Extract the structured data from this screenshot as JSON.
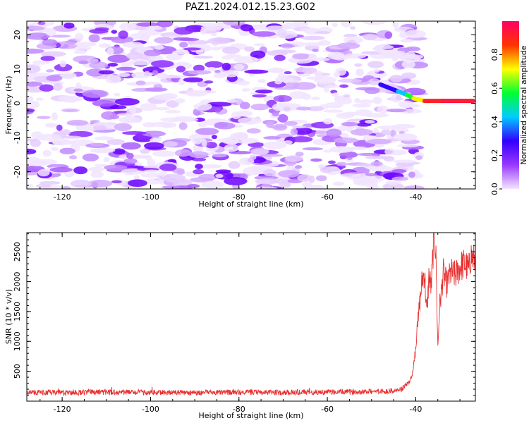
{
  "title": "PAZ1.2024.012.15.23.G02",
  "chart_data": [
    {
      "type": "heatmap",
      "xlabel": "Height of straight line (km)",
      "ylabel": "Frequency (Hz)",
      "xlim": [
        -128,
        -26.5
      ],
      "ylim": [
        -25,
        24
      ],
      "x_ticks": [
        "-120",
        "-100",
        "-80",
        "-60",
        "-40"
      ],
      "y_ticks": [
        "20",
        "10",
        "0",
        "-10",
        "-20"
      ],
      "colorbar": {
        "label": "Normalized spectral amplitude",
        "range": [
          0,
          1
        ],
        "ticks": [
          "0.0",
          "0.2",
          "0.4",
          "0.6",
          "0.8"
        ],
        "colors": [
          "#f3e6ff",
          "#9a38ff",
          "#3300ff",
          "#00ccff",
          "#00ff30",
          "#ffff00",
          "#ff3300",
          "#ff0066"
        ]
      },
      "note_signal": [
        {
          "x": -48,
          "y": 5.5,
          "amp": 0.28
        },
        {
          "x": -44,
          "y": 3.5,
          "amp": 0.3
        },
        {
          "x": -42,
          "y": 2.5,
          "amp": 0.55
        },
        {
          "x": -40.5,
          "y": 1.5,
          "amp": 0.6
        },
        {
          "x": -38,
          "y": 0.7,
          "amp": 0.85
        },
        {
          "x": -34,
          "y": 0.7,
          "amp": 0.95
        },
        {
          "x": -30,
          "y": 0.7,
          "amp": 0.98
        },
        {
          "x": -27,
          "y": 0.7,
          "amp": 0.9
        }
      ]
    },
    {
      "type": "line",
      "xlabel": "Height of straight line (km)",
      "ylabel": "SNR (10 * v/v)",
      "xlim": [
        -128,
        -26.5
      ],
      "ylim": [
        0,
        2820
      ],
      "x_ticks": [
        "-120",
        "-100",
        "-80",
        "-60",
        "-40"
      ],
      "y_ticks": [
        "500",
        "1000",
        "1500",
        "2000",
        "2500"
      ],
      "series": [
        {
          "color": "#e83030",
          "x": [
            -128,
            -120,
            -110,
            -100,
            -90,
            -80,
            -70,
            -60,
            -50,
            -45,
            -43,
            -42,
            -41.5,
            -41,
            -40.5,
            -40,
            -39.5,
            -39,
            -38.5,
            -38,
            -37.5,
            -37,
            -36.5,
            -36,
            -35.7,
            -35.4,
            -35,
            -34.6,
            -34.2,
            -33.8,
            -33.4,
            -33,
            -32,
            -31,
            -30,
            -29,
            -28,
            -27.5,
            -27,
            -26.5
          ],
          "y": [
            150,
            140,
            150,
            145,
            140,
            150,
            145,
            150,
            160,
            170,
            200,
            280,
            330,
            380,
            560,
            900,
            1350,
            1700,
            2050,
            2150,
            1450,
            2100,
            1900,
            2600,
            2780,
            2350,
            880,
            1600,
            1800,
            2150,
            2050,
            1950,
            2150,
            2100,
            2250,
            2300,
            2200,
            2450,
            2350,
            2400
          ]
        }
      ]
    }
  ]
}
